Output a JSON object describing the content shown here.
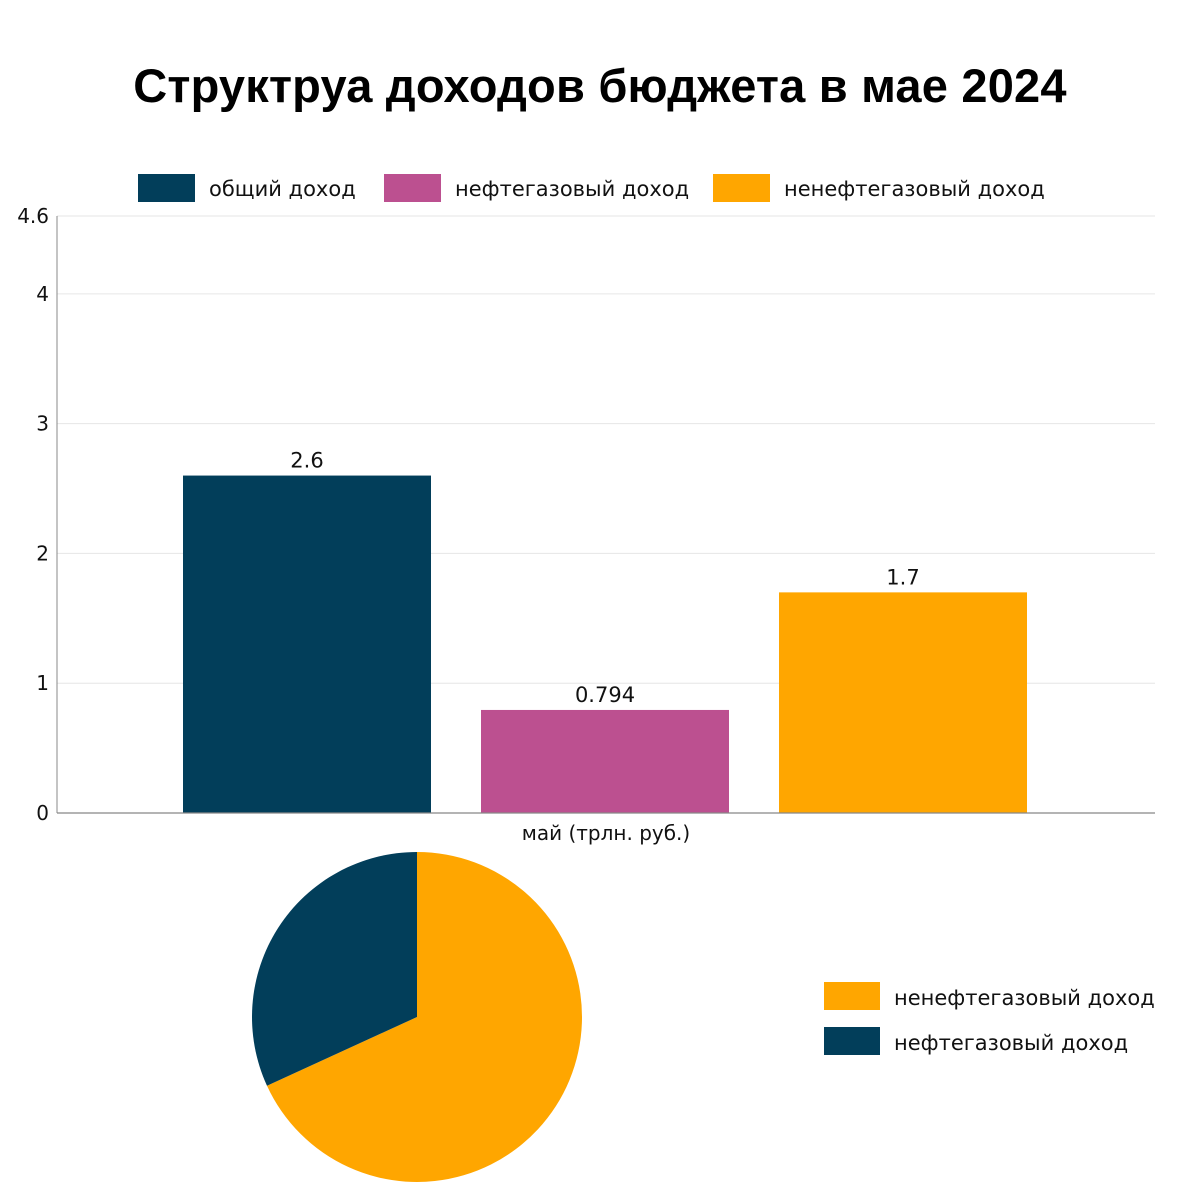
{
  "title": "Структруа доходов бюджета в мае 2024",
  "chart_data": [
    {
      "type": "bar",
      "categories": [
        "май (трлн. руб.)"
      ],
      "xlabel": "май (трлн. руб.)",
      "ylabel": "",
      "ylim": [
        0,
        4.6
      ],
      "yticks": [
        0,
        1,
        2,
        3,
        4,
        4.6
      ],
      "grid": true,
      "legend_position": "top",
      "series": [
        {
          "name": "общий доход",
          "values": [
            2.6
          ],
          "label": "2.6",
          "color": "#023E5A"
        },
        {
          "name": "нефтегазовый доход",
          "values": [
            0.794
          ],
          "label": "0.794",
          "color": "#BC5090"
        },
        {
          "name": "ненефтегазовый доход",
          "values": [
            1.7
          ],
          "label": "1.7",
          "color": "#FFA600"
        }
      ]
    },
    {
      "type": "pie",
      "legend_position": "right",
      "slices": [
        {
          "name": "ненефтегазовый доход",
          "value": 1.7,
          "color": "#FFA600"
        },
        {
          "name": "нефтегазовый доход",
          "value": 0.794,
          "color": "#023E5A"
        }
      ]
    }
  ]
}
